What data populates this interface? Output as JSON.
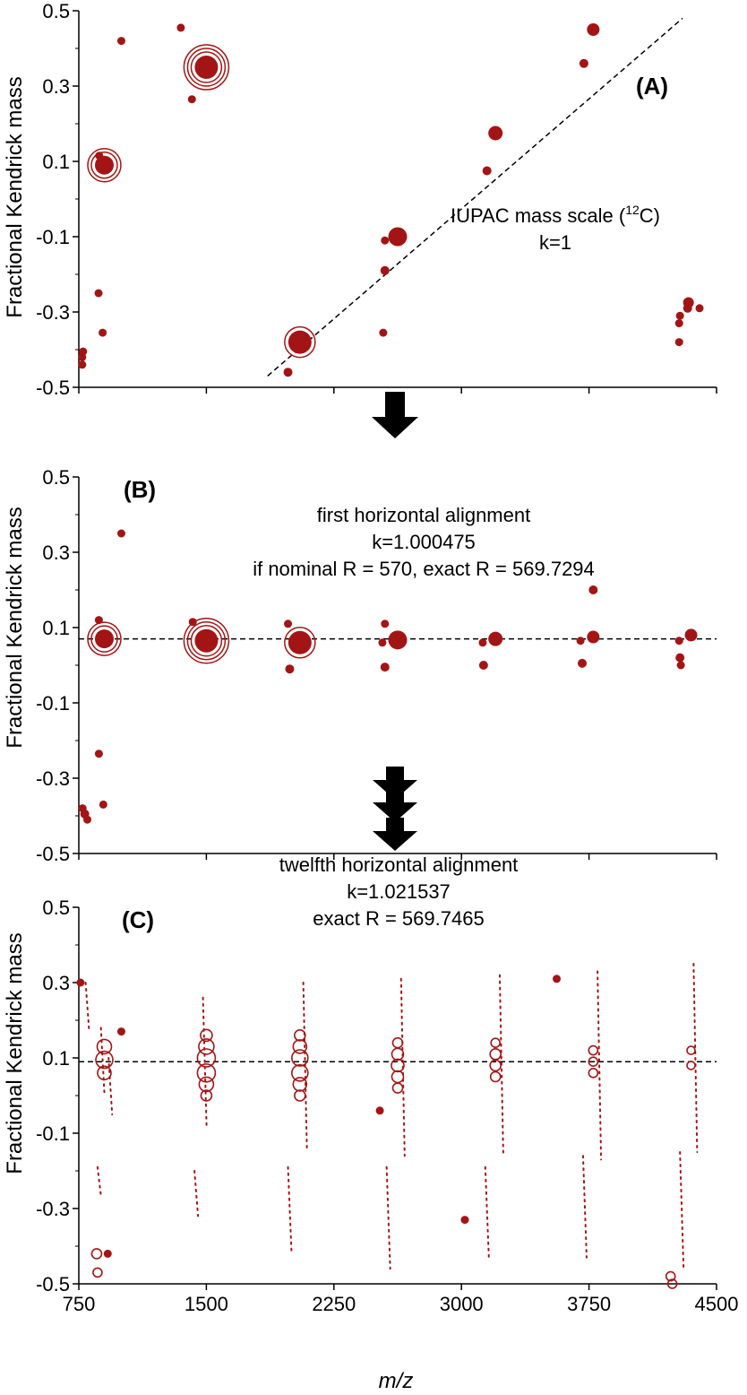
{
  "colors": {
    "marker": "#a31515",
    "axis": "#000000",
    "arrow": "#000000"
  },
  "chart_data": [
    {
      "panel": "(A)",
      "type": "scatter",
      "title": "",
      "xlabel": "",
      "ylabel": "Fractional Kendrick mass",
      "xlim": [
        750,
        4500
      ],
      "ylim": [
        -0.5,
        0.5
      ],
      "y_ticks": [
        "0.5",
        "0.3",
        "0.1",
        "-0.1",
        "-0.3",
        "-0.5"
      ],
      "annotation": [
        "IUPAC mass scale (",
        "12",
        "C)",
        "k=1"
      ],
      "trendline": {
        "x": [
          1860,
          4300
        ],
        "y": [
          -0.47,
          0.48
        ]
      },
      "points": [
        {
          "x": 1500,
          "y": 0.35,
          "r": 2,
          "rings": 3
        },
        {
          "x": 900,
          "y": 0.09,
          "r": 1.5,
          "rings": 2
        },
        {
          "x": 2050,
          "y": -0.38,
          "r": 2,
          "rings": 1
        },
        {
          "x": 2625,
          "y": -0.1,
          "r": 1.5,
          "rings": 0
        },
        {
          "x": 3200,
          "y": 0.175,
          "r": 1,
          "rings": 0
        },
        {
          "x": 3775,
          "y": 0.45,
          "r": 0.8,
          "rings": 0
        },
        {
          "x": 1000,
          "y": 0.42,
          "r": 0.3,
          "rings": 0
        },
        {
          "x": 1350,
          "y": 0.455,
          "r": 0.3,
          "rings": 0
        },
        {
          "x": 1415,
          "y": 0.265,
          "r": 0.3,
          "rings": 0
        },
        {
          "x": 870,
          "y": 0.115,
          "r": 0.3,
          "rings": 0
        },
        {
          "x": 1980,
          "y": -0.46,
          "r": 0.4,
          "rings": 0
        },
        {
          "x": 2550,
          "y": -0.11,
          "r": 0.3,
          "rings": 0
        },
        {
          "x": 2550,
          "y": -0.19,
          "r": 0.4,
          "rings": 0
        },
        {
          "x": 2540,
          "y": -0.355,
          "r": 0.3,
          "rings": 0
        },
        {
          "x": 3150,
          "y": 0.075,
          "r": 0.4,
          "rings": 0
        },
        {
          "x": 3720,
          "y": 0.36,
          "r": 0.4,
          "rings": 0
        },
        {
          "x": 4335,
          "y": -0.275,
          "r": 0.6,
          "rings": 0
        },
        {
          "x": 4330,
          "y": -0.29,
          "r": 0.4,
          "rings": 0
        },
        {
          "x": 4400,
          "y": -0.29,
          "r": 0.3,
          "rings": 0
        },
        {
          "x": 4280,
          "y": -0.33,
          "r": 0.3,
          "rings": 0
        },
        {
          "x": 4280,
          "y": -0.38,
          "r": 0.3,
          "rings": 0
        },
        {
          "x": 4285,
          "y": -0.31,
          "r": 0.3,
          "rings": 0
        },
        {
          "x": 866,
          "y": -0.25,
          "r": 0.3,
          "rings": 0
        },
        {
          "x": 890,
          "y": -0.355,
          "r": 0.3,
          "rings": 0
        },
        {
          "x": 770,
          "y": -0.42,
          "r": 0.3,
          "rings": 0
        },
        {
          "x": 770,
          "y": -0.44,
          "r": 0.3,
          "rings": 0
        },
        {
          "x": 775,
          "y": -0.405,
          "r": 0.3,
          "rings": 0
        }
      ]
    },
    {
      "panel": "(B)",
      "type": "scatter",
      "title": "",
      "xlabel": "",
      "ylabel": "Fractional Kendrick mass",
      "xlim": [
        750,
        4500
      ],
      "ylim": [
        -0.5,
        0.5
      ],
      "y_ticks": [
        "0.5",
        "0.3",
        "0.1",
        "-0.1",
        "-0.3",
        "-0.5"
      ],
      "annotation": [
        "first horizontal alignment",
        "k=1.000475",
        "if nominal R = 570, exact R = 569.7294"
      ],
      "hline_y": 0.07,
      "points": [
        {
          "x": 900,
          "y": 0.07,
          "r": 1.5,
          "rings": 2
        },
        {
          "x": 1500,
          "y": 0.065,
          "r": 2,
          "rings": 3
        },
        {
          "x": 2050,
          "y": 0.06,
          "r": 2,
          "rings": 1
        },
        {
          "x": 2625,
          "y": 0.067,
          "r": 1.5,
          "rings": 0
        },
        {
          "x": 3200,
          "y": 0.07,
          "r": 1,
          "rings": 0
        },
        {
          "x": 3775,
          "y": 0.075,
          "r": 0.8,
          "rings": 0
        },
        {
          "x": 4350,
          "y": 0.08,
          "r": 0.8,
          "rings": 0
        },
        {
          "x": 1000,
          "y": 0.35,
          "r": 0.3,
          "rings": 0
        },
        {
          "x": 3775,
          "y": 0.2,
          "r": 0.4,
          "rings": 0
        },
        {
          "x": 868,
          "y": 0.12,
          "r": 0.3,
          "rings": 0
        },
        {
          "x": 1420,
          "y": 0.115,
          "r": 0.3,
          "rings": 0
        },
        {
          "x": 1980,
          "y": 0.11,
          "r": 0.3,
          "rings": 0
        },
        {
          "x": 2550,
          "y": 0.11,
          "r": 0.3,
          "rings": 0
        },
        {
          "x": 2535,
          "y": 0.06,
          "r": 0.3,
          "rings": 0
        },
        {
          "x": 3125,
          "y": 0.06,
          "r": 0.3,
          "rings": 0
        },
        {
          "x": 3700,
          "y": 0.065,
          "r": 0.3,
          "rings": 0
        },
        {
          "x": 4280,
          "y": 0.065,
          "r": 0.3,
          "rings": 0
        },
        {
          "x": 1990,
          "y": -0.01,
          "r": 0.4,
          "rings": 0
        },
        {
          "x": 2550,
          "y": -0.005,
          "r": 0.4,
          "rings": 0
        },
        {
          "x": 3130,
          "y": 0.0,
          "r": 0.4,
          "rings": 0
        },
        {
          "x": 3710,
          "y": 0.005,
          "r": 0.4,
          "rings": 0
        },
        {
          "x": 4285,
          "y": 0.02,
          "r": 0.4,
          "rings": 0
        },
        {
          "x": 4290,
          "y": 0.0,
          "r": 0.3,
          "rings": 0
        },
        {
          "x": 868,
          "y": -0.235,
          "r": 0.3,
          "rings": 0
        },
        {
          "x": 894,
          "y": -0.37,
          "r": 0.3,
          "rings": 0
        },
        {
          "x": 772,
          "y": -0.38,
          "r": 0.3,
          "rings": 0
        },
        {
          "x": 785,
          "y": -0.395,
          "r": 0.4,
          "rings": 0
        },
        {
          "x": 800,
          "y": -0.41,
          "r": 0.3,
          "rings": 0
        }
      ]
    },
    {
      "panel": "(C)",
      "type": "scatter",
      "title": "",
      "xlabel": "m/z",
      "ylabel": "Fractional Kendrick mass",
      "xlim": [
        750,
        4500
      ],
      "ylim": [
        -0.5,
        0.5
      ],
      "y_ticks": [
        "0.5",
        "0.3",
        "0.1",
        "-0.1",
        "-0.3",
        "-0.5"
      ],
      "x_ticks": [
        "750",
        "1500",
        "2250",
        "3000",
        "3750",
        "4500"
      ],
      "annotation": [
        "twelfth horizontal alignment",
        "k=1.021537",
        "exact R = 569.7465"
      ],
      "hline_y": 0.09,
      "points": [
        {
          "x": 900,
          "y": 0.13,
          "r": 1,
          "rings": 0,
          "open": true
        },
        {
          "x": 900,
          "y": 0.095,
          "r": 1.3,
          "rings": 0,
          "open": true
        },
        {
          "x": 900,
          "y": 0.06,
          "r": 0.9,
          "rings": 0,
          "open": true
        },
        {
          "x": 1500,
          "y": 0.16,
          "r": 0.7,
          "rings": 0,
          "open": true
        },
        {
          "x": 1500,
          "y": 0.13,
          "r": 1.1,
          "rings": 0,
          "open": true
        },
        {
          "x": 1500,
          "y": 0.1,
          "r": 1.4,
          "rings": 0,
          "open": true
        },
        {
          "x": 1500,
          "y": 0.06,
          "r": 1.4,
          "rings": 0,
          "open": true
        },
        {
          "x": 1500,
          "y": 0.03,
          "r": 1.0,
          "rings": 0,
          "open": true
        },
        {
          "x": 1500,
          "y": 0.0,
          "r": 0.6,
          "rings": 0,
          "open": true
        },
        {
          "x": 2050,
          "y": 0.16,
          "r": 0.6,
          "rings": 0,
          "open": true
        },
        {
          "x": 2050,
          "y": 0.13,
          "r": 0.9,
          "rings": 0,
          "open": true
        },
        {
          "x": 2050,
          "y": 0.1,
          "r": 1.2,
          "rings": 0,
          "open": true
        },
        {
          "x": 2050,
          "y": 0.06,
          "r": 1.2,
          "rings": 0,
          "open": true
        },
        {
          "x": 2050,
          "y": 0.03,
          "r": 0.9,
          "rings": 0,
          "open": true
        },
        {
          "x": 2050,
          "y": 0.0,
          "r": 0.6,
          "rings": 0,
          "open": true
        },
        {
          "x": 2625,
          "y": 0.14,
          "r": 0.5,
          "rings": 0,
          "open": true
        },
        {
          "x": 2625,
          "y": 0.11,
          "r": 0.7,
          "rings": 0,
          "open": true
        },
        {
          "x": 2625,
          "y": 0.08,
          "r": 0.8,
          "rings": 0,
          "open": true
        },
        {
          "x": 2625,
          "y": 0.05,
          "r": 0.7,
          "rings": 0,
          "open": true
        },
        {
          "x": 2625,
          "y": 0.02,
          "r": 0.5,
          "rings": 0,
          "open": true
        },
        {
          "x": 3200,
          "y": 0.14,
          "r": 0.4,
          "rings": 0,
          "open": true
        },
        {
          "x": 3200,
          "y": 0.11,
          "r": 0.6,
          "rings": 0,
          "open": true
        },
        {
          "x": 3200,
          "y": 0.08,
          "r": 0.6,
          "rings": 0,
          "open": true
        },
        {
          "x": 3200,
          "y": 0.05,
          "r": 0.5,
          "rings": 0,
          "open": true
        },
        {
          "x": 3775,
          "y": 0.12,
          "r": 0.4,
          "rings": 0,
          "open": true
        },
        {
          "x": 3775,
          "y": 0.09,
          "r": 0.4,
          "rings": 0,
          "open": true
        },
        {
          "x": 3775,
          "y": 0.06,
          "r": 0.4,
          "rings": 0,
          "open": true
        },
        {
          "x": 4350,
          "y": 0.12,
          "r": 0.3,
          "rings": 0,
          "open": true
        },
        {
          "x": 4350,
          "y": 0.08,
          "r": 0.3,
          "rings": 0,
          "open": true
        },
        {
          "x": 1000,
          "y": 0.17,
          "r": 0.3,
          "rings": 0
        },
        {
          "x": 760,
          "y": 0.3,
          "r": 0.3,
          "rings": 0
        },
        {
          "x": 2520,
          "y": -0.04,
          "r": 0.3,
          "rings": 0
        },
        {
          "x": 3560,
          "y": 0.31,
          "r": 0.3,
          "rings": 0
        },
        {
          "x": 3020,
          "y": -0.33,
          "r": 0.3,
          "rings": 0
        },
        {
          "x": 855,
          "y": -0.42,
          "r": 0.5,
          "rings": 0,
          "open": true
        },
        {
          "x": 860,
          "y": -0.47,
          "r": 0.4,
          "rings": 0,
          "open": true
        },
        {
          "x": 4230,
          "y": -0.48,
          "r": 0.4,
          "rings": 0,
          "open": true
        },
        {
          "x": 4240,
          "y": -0.5,
          "r": 0.4,
          "rings": 0,
          "open": true
        },
        {
          "x": 920,
          "y": -0.42,
          "r": 0.3,
          "rings": 0
        }
      ],
      "strands": [
        {
          "x": 790,
          "y_from": 0.3,
          "y_to": 0.17
        },
        {
          "x": 880,
          "y_from": 0.18,
          "y_to": 0.0
        },
        {
          "x": 925,
          "y_from": 0.1,
          "y_to": -0.05
        },
        {
          "x": 860,
          "y_from": -0.19,
          "y_to": -0.27
        },
        {
          "x": 1480,
          "y_from": 0.26,
          "y_to": -0.08
        },
        {
          "x": 1430,
          "y_from": -0.2,
          "y_to": -0.32
        },
        {
          "x": 2070,
          "y_from": 0.3,
          "y_to": -0.14
        },
        {
          "x": 1980,
          "y_from": -0.19,
          "y_to": -0.42
        },
        {
          "x": 2645,
          "y_from": 0.31,
          "y_to": -0.16
        },
        {
          "x": 2560,
          "y_from": -0.19,
          "y_to": -0.46
        },
        {
          "x": 3225,
          "y_from": 0.32,
          "y_to": -0.16
        },
        {
          "x": 3140,
          "y_from": -0.19,
          "y_to": -0.43
        },
        {
          "x": 3800,
          "y_from": 0.33,
          "y_to": -0.17
        },
        {
          "x": 3715,
          "y_from": -0.16,
          "y_to": -0.43
        },
        {
          "x": 4365,
          "y_from": 0.35,
          "y_to": -0.15
        },
        {
          "x": 4285,
          "y_from": -0.15,
          "y_to": -0.46
        }
      ]
    }
  ]
}
